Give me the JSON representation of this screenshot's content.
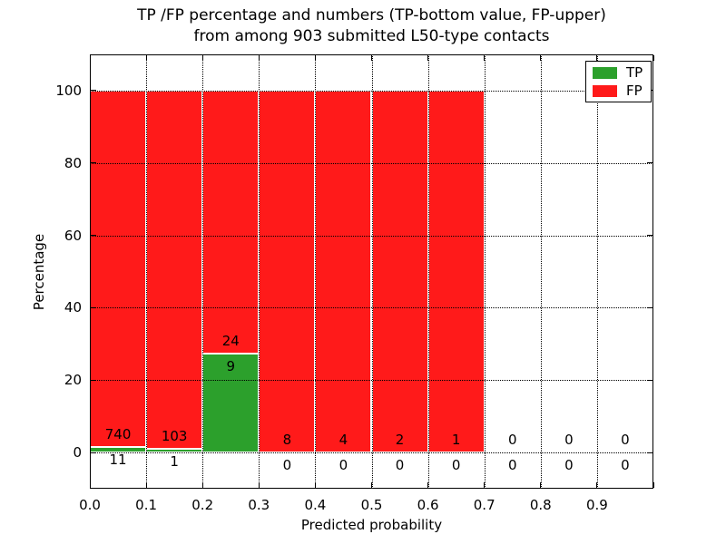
{
  "figure": {
    "title_line1": "TP /FP percentage and numbers (TP-bottom value, FP-upper)",
    "title_line2": "from among 903 submitted L50-type contacts"
  },
  "axes": {
    "xlabel": "Predicted probability",
    "ylabel": "Percentage",
    "xtick_labels": [
      "0.0",
      "0.1",
      "0.2",
      "0.3",
      "0.4",
      "0.5",
      "0.6",
      "0.7",
      "0.8",
      "0.9"
    ],
    "ytick_labels": [
      "0",
      "20",
      "40",
      "60",
      "80",
      "100"
    ]
  },
  "legend": {
    "position": "upper right",
    "items": [
      {
        "label": "TP",
        "color": "#2ca02c"
      },
      {
        "label": "FP",
        "color": "#ff1a1a"
      }
    ]
  },
  "chart_data": {
    "type": "bar",
    "stacked": true,
    "title": "TP /FP percentage and numbers (TP-bottom value, FP-upper) from among 903 submitted L50-type contacts",
    "xlabel": "Predicted probability",
    "ylabel": "Percentage",
    "xlim": [
      0,
      1
    ],
    "ylim": [
      -10,
      110
    ],
    "grid": true,
    "legend_position": "upper right",
    "total_contacts": 903,
    "bin_starts": [
      0.0,
      0.1,
      0.2,
      0.3,
      0.4,
      0.5,
      0.6,
      0.7,
      0.8,
      0.9
    ],
    "bin_width": 0.1,
    "series": [
      {
        "name": "TP",
        "color": "#2ca02c",
        "counts": [
          11,
          1,
          9,
          0,
          0,
          0,
          0,
          0,
          0,
          0
        ]
      },
      {
        "name": "FP",
        "color": "#ff1a1a",
        "counts": [
          740,
          103,
          24,
          8,
          4,
          2,
          1,
          0,
          0,
          0
        ]
      }
    ],
    "tp_percent_of_bin": [
      1.46,
      0.96,
      27.27,
      0,
      0,
      0,
      0,
      0,
      0,
      0
    ],
    "bar_total_percent": [
      100,
      100,
      100,
      100,
      100,
      100,
      100,
      0,
      0,
      0
    ]
  }
}
